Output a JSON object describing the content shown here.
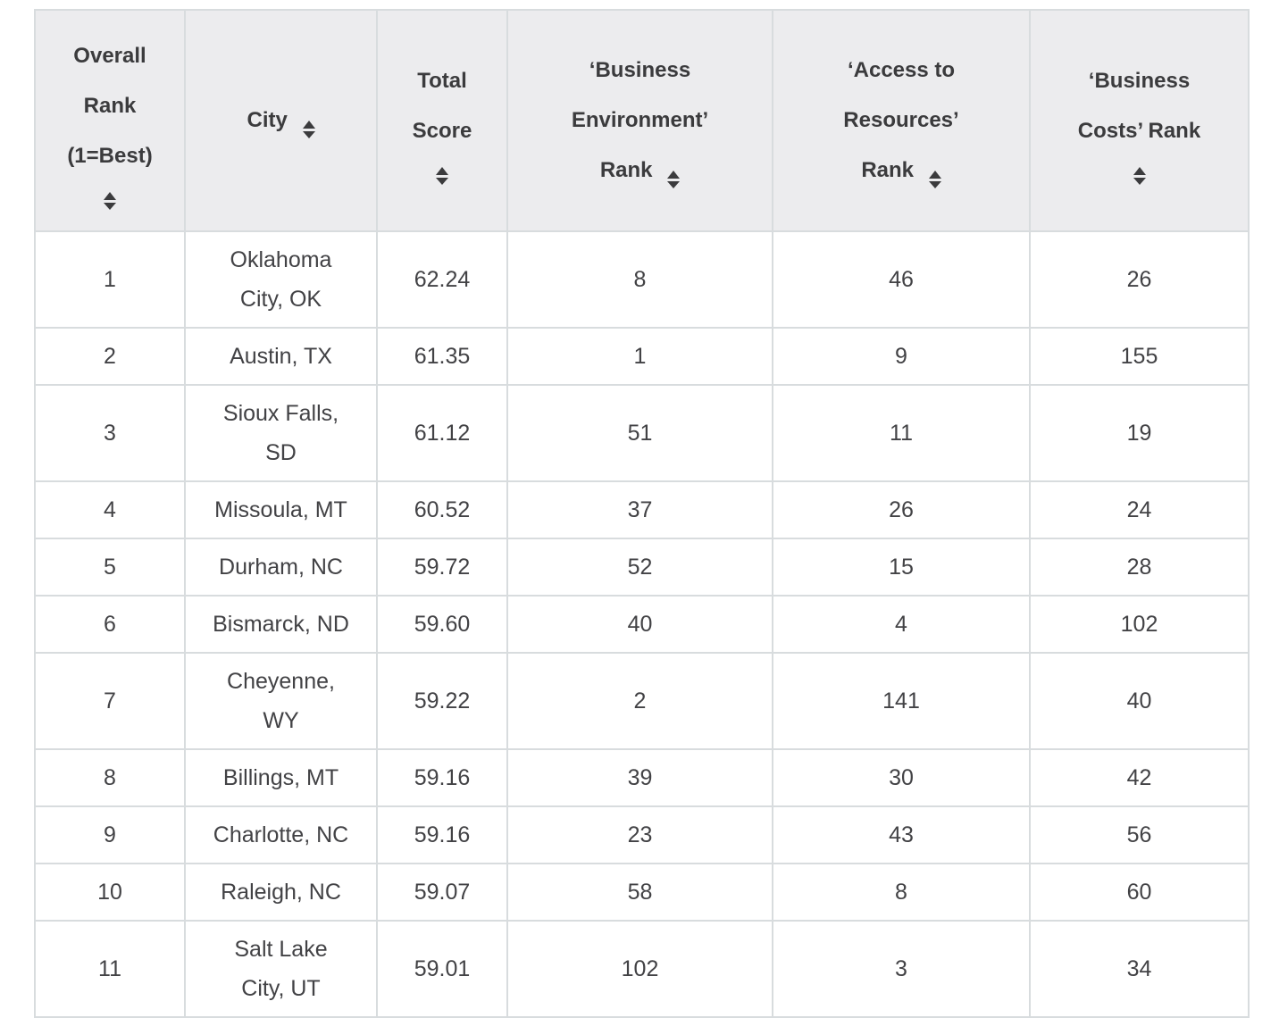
{
  "chart_data": {
    "type": "table",
    "columns": [
      "Overall Rank (1=Best)",
      "City",
      "Total Score",
      "‘Business Environment’ Rank",
      "‘Access to Resources’ Rank",
      "‘Business Costs’ Rank"
    ],
    "rows": [
      [
        "1",
        "Oklahoma City, OK",
        "62.24",
        "8",
        "46",
        "26"
      ],
      [
        "2",
        "Austin, TX",
        "61.35",
        "1",
        "9",
        "155"
      ],
      [
        "3",
        "Sioux Falls, SD",
        "61.12",
        "51",
        "11",
        "19"
      ],
      [
        "4",
        "Missoula, MT",
        "60.52",
        "37",
        "26",
        "24"
      ],
      [
        "5",
        "Durham, NC",
        "59.72",
        "52",
        "15",
        "28"
      ],
      [
        "6",
        "Bismarck, ND",
        "59.60",
        "40",
        "4",
        "102"
      ],
      [
        "7",
        "Cheyenne, WY",
        "59.22",
        "2",
        "141",
        "40"
      ],
      [
        "8",
        "Billings, MT",
        "59.16",
        "39",
        "30",
        "42"
      ],
      [
        "9",
        "Charlotte, NC",
        "59.16",
        "23",
        "43",
        "56"
      ],
      [
        "10",
        "Raleigh, NC",
        "59.07",
        "58",
        "8",
        "60"
      ],
      [
        "11",
        "Salt Lake City, UT",
        "59.01",
        "102",
        "3",
        "34"
      ]
    ]
  },
  "header": {
    "columns": [
      {
        "display": "Overall\nRank\n(1=Best)",
        "icon": "sort-updown-icon"
      },
      {
        "display": "City",
        "icon": "sort-updown-icon"
      },
      {
        "display": "Total\nScore",
        "icon": "sort-updown-icon"
      },
      {
        "display": "‘Business\nEnvironment’\nRank",
        "icon": "sort-updown-icon"
      },
      {
        "display": "‘Access to\nResources’\nRank",
        "icon": "sort-updown-icon"
      },
      {
        "display": "‘Business\nCosts’ Rank",
        "icon": "sort-updown-icon"
      }
    ]
  },
  "display": {
    "city_display": {
      "0": "Oklahoma\nCity, OK",
      "2": "Sioux Falls,\nSD",
      "6": "Cheyenne,\nWY",
      "10": "Salt Lake\nCity, UT"
    }
  },
  "colors": {
    "header_bg": "#ececee",
    "border": "#d8dcde",
    "header_text": "#3b3b3d",
    "body_text": "#424245",
    "body_bg": "#ffffff"
  }
}
